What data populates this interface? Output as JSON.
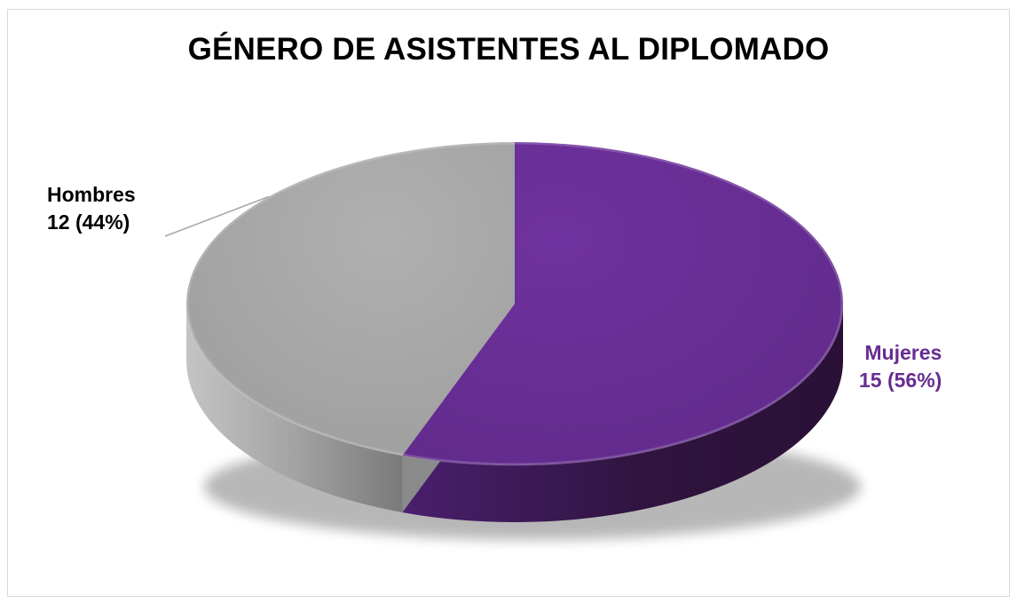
{
  "chart_data": {
    "type": "pie",
    "title": "GÉNERO DE ASISTENTES AL DIPLOMADO",
    "style": "3d",
    "slices": [
      {
        "label": "Mujeres",
        "value": 15,
        "percent": 56,
        "display_value": "15 (56%)",
        "color": "#662d91"
      },
      {
        "label": "Hombres",
        "value": 12,
        "percent": 44,
        "display_value": "12 (44%)",
        "color": "#a6a6a6"
      }
    ]
  }
}
